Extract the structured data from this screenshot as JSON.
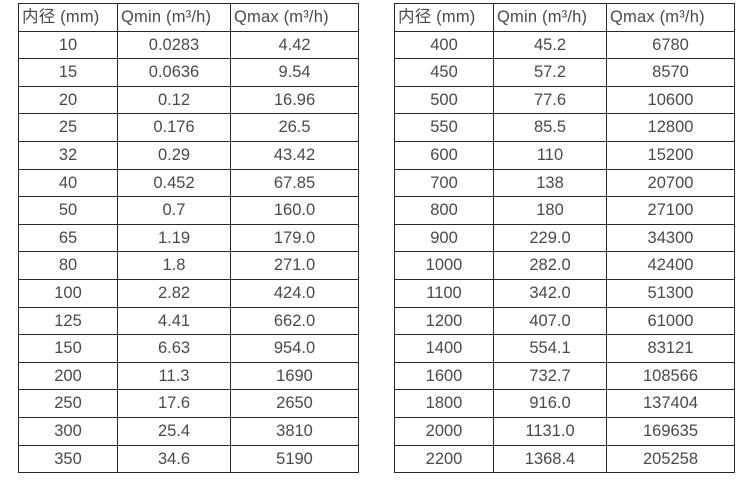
{
  "chart_data": [
    {
      "type": "table",
      "title": "",
      "headers": [
        "内径 (mm)",
        "Qmin (m³/h)",
        "Qmax (m³/h)"
      ],
      "rows": [
        [
          "10",
          "0.0283",
          "4.42"
        ],
        [
          "15",
          "0.0636",
          "9.54"
        ],
        [
          "20",
          "0.12",
          "16.96"
        ],
        [
          "25",
          "0.176",
          "26.5"
        ],
        [
          "32",
          "0.29",
          "43.42"
        ],
        [
          "40",
          "0.452",
          "67.85"
        ],
        [
          "50",
          "0.7",
          "160.0"
        ],
        [
          "65",
          "1.19",
          "179.0"
        ],
        [
          "80",
          "1.8",
          "271.0"
        ],
        [
          "100",
          "2.82",
          "424.0"
        ],
        [
          "125",
          "4.41",
          "662.0"
        ],
        [
          "150",
          "6.63",
          "954.0"
        ],
        [
          "200",
          "11.3",
          "1690"
        ],
        [
          "250",
          "17.6",
          "2650"
        ],
        [
          "300",
          "25.4",
          "3810"
        ],
        [
          "350",
          "34.6",
          "5190"
        ]
      ]
    },
    {
      "type": "table",
      "title": "",
      "headers": [
        "内径 (mm)",
        "Qmin (m³/h)",
        "Qmax (m³/h)"
      ],
      "rows": [
        [
          "400",
          "45.2",
          "6780"
        ],
        [
          "450",
          "57.2",
          "8570"
        ],
        [
          "500",
          "77.6",
          "10600"
        ],
        [
          "550",
          "85.5",
          "12800"
        ],
        [
          "600",
          "110",
          "15200"
        ],
        [
          "700",
          "138",
          "20700"
        ],
        [
          "800",
          "180",
          "27100"
        ],
        [
          "900",
          "229.0",
          "34300"
        ],
        [
          "1000",
          "282.0",
          "42400"
        ],
        [
          "1100",
          "342.0",
          "51300"
        ],
        [
          "1200",
          "407.0",
          "61000"
        ],
        [
          "1400",
          "554.1",
          "83121"
        ],
        [
          "1600",
          "732.7",
          "108566"
        ],
        [
          "1800",
          "916.0",
          "137404"
        ],
        [
          "2000",
          "1131.0",
          "169635"
        ],
        [
          "2200",
          "1368.4",
          "205258"
        ]
      ]
    }
  ],
  "colors": {
    "background": "#ffffff",
    "border": "#2a2a2a",
    "text": "#4a4a4a"
  }
}
